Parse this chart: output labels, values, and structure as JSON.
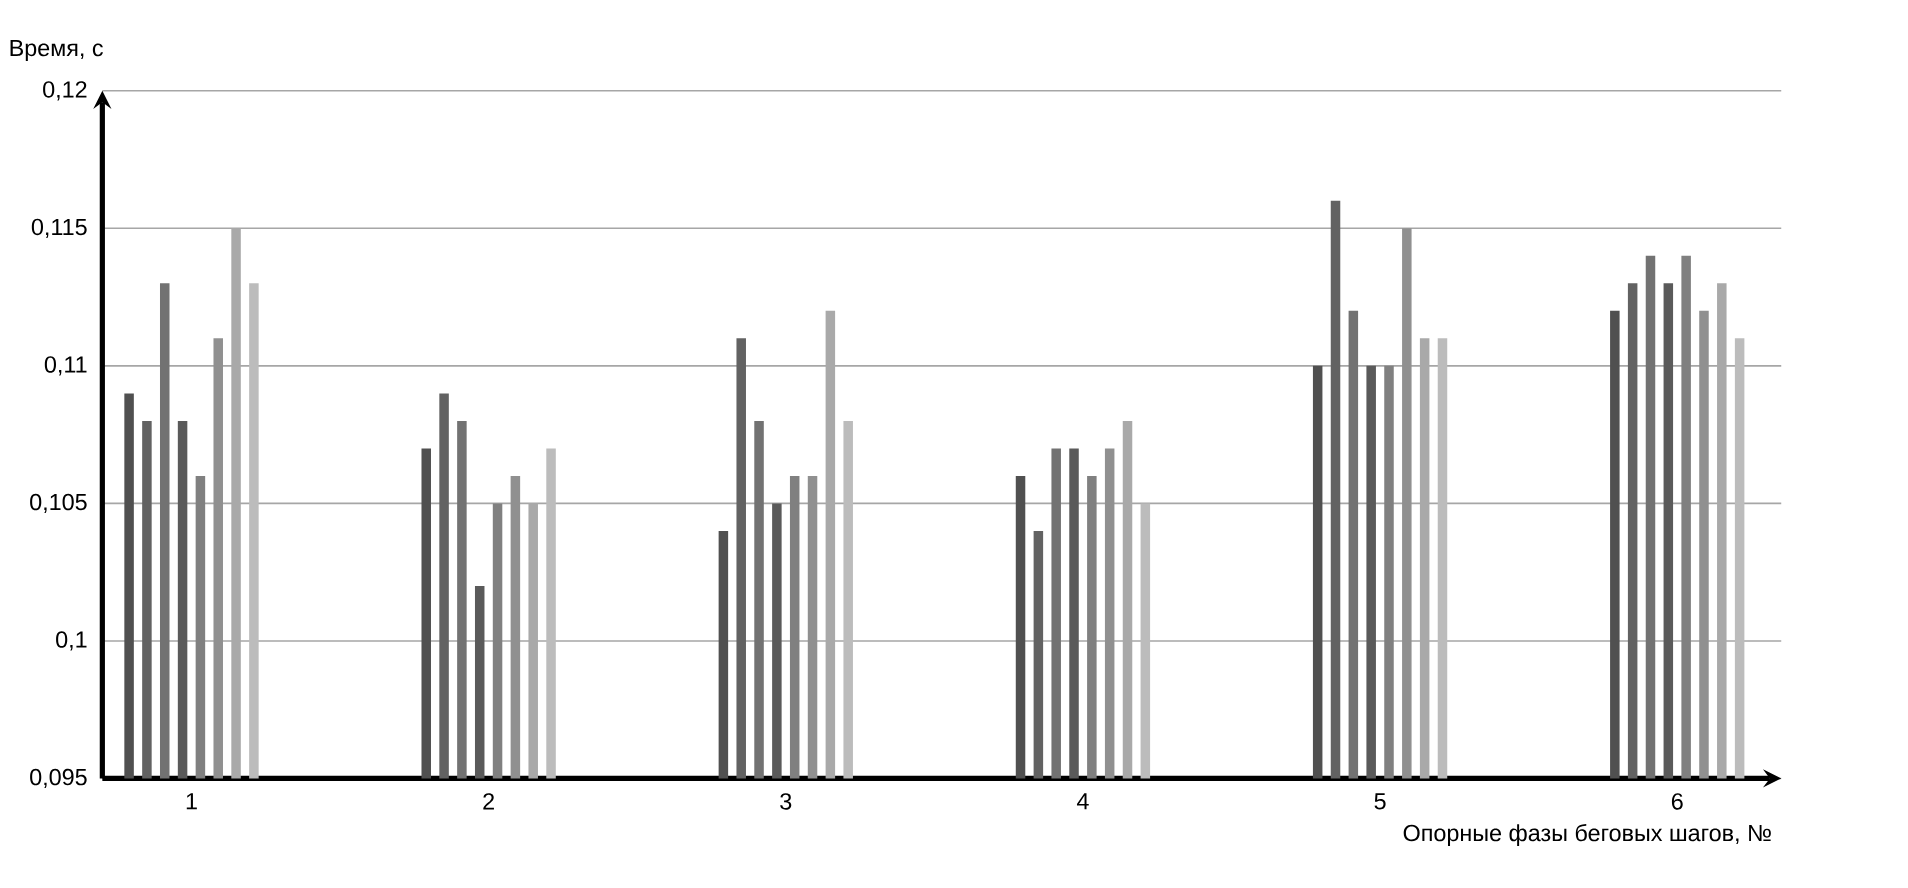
{
  "chart_data": {
    "type": "bar",
    "xlabel": "Опорные фазы беговых шагов, №",
    "ylabel": "Время, с",
    "categories": [
      "1",
      "2",
      "3",
      "4",
      "5",
      "6"
    ],
    "series": [
      {
        "color": "#505050",
        "values": [
          0.109,
          0.107,
          0.104,
          0.106,
          0.11,
          0.112
        ]
      },
      {
        "color": "#626262",
        "values": [
          0.108,
          0.109,
          0.111,
          0.104,
          0.116,
          0.113
        ]
      },
      {
        "color": "#727272",
        "values": [
          0.113,
          0.108,
          0.108,
          0.107,
          0.112,
          0.114
        ]
      },
      {
        "color": "#5a5a5a",
        "values": [
          0.108,
          0.102,
          0.105,
          0.107,
          0.11,
          0.113
        ]
      },
      {
        "color": "#808080",
        "values": [
          0.106,
          0.105,
          0.106,
          0.106,
          0.11,
          0.114
        ]
      },
      {
        "color": "#909090",
        "values": [
          0.111,
          0.106,
          0.106,
          0.107,
          0.115,
          0.112
        ]
      },
      {
        "color": "#a9a9a9",
        "values": [
          0.115,
          0.105,
          0.112,
          0.108,
          0.111,
          0.113
        ]
      },
      {
        "color": "#bcbcbc",
        "values": [
          0.113,
          0.107,
          0.108,
          0.105,
          0.111,
          0.111
        ]
      }
    ],
    "ylim": [
      0.095,
      0.12
    ],
    "yticks": [
      {
        "value": 0.095,
        "label": "0,095"
      },
      {
        "value": 0.1,
        "label": "0,1"
      },
      {
        "value": 0.105,
        "label": "0,105"
      },
      {
        "value": 0.11,
        "label": "0,11"
      },
      {
        "value": 0.115,
        "label": "0,115"
      },
      {
        "value": 0.12,
        "label": "0,12"
      }
    ],
    "grid": "y"
  }
}
